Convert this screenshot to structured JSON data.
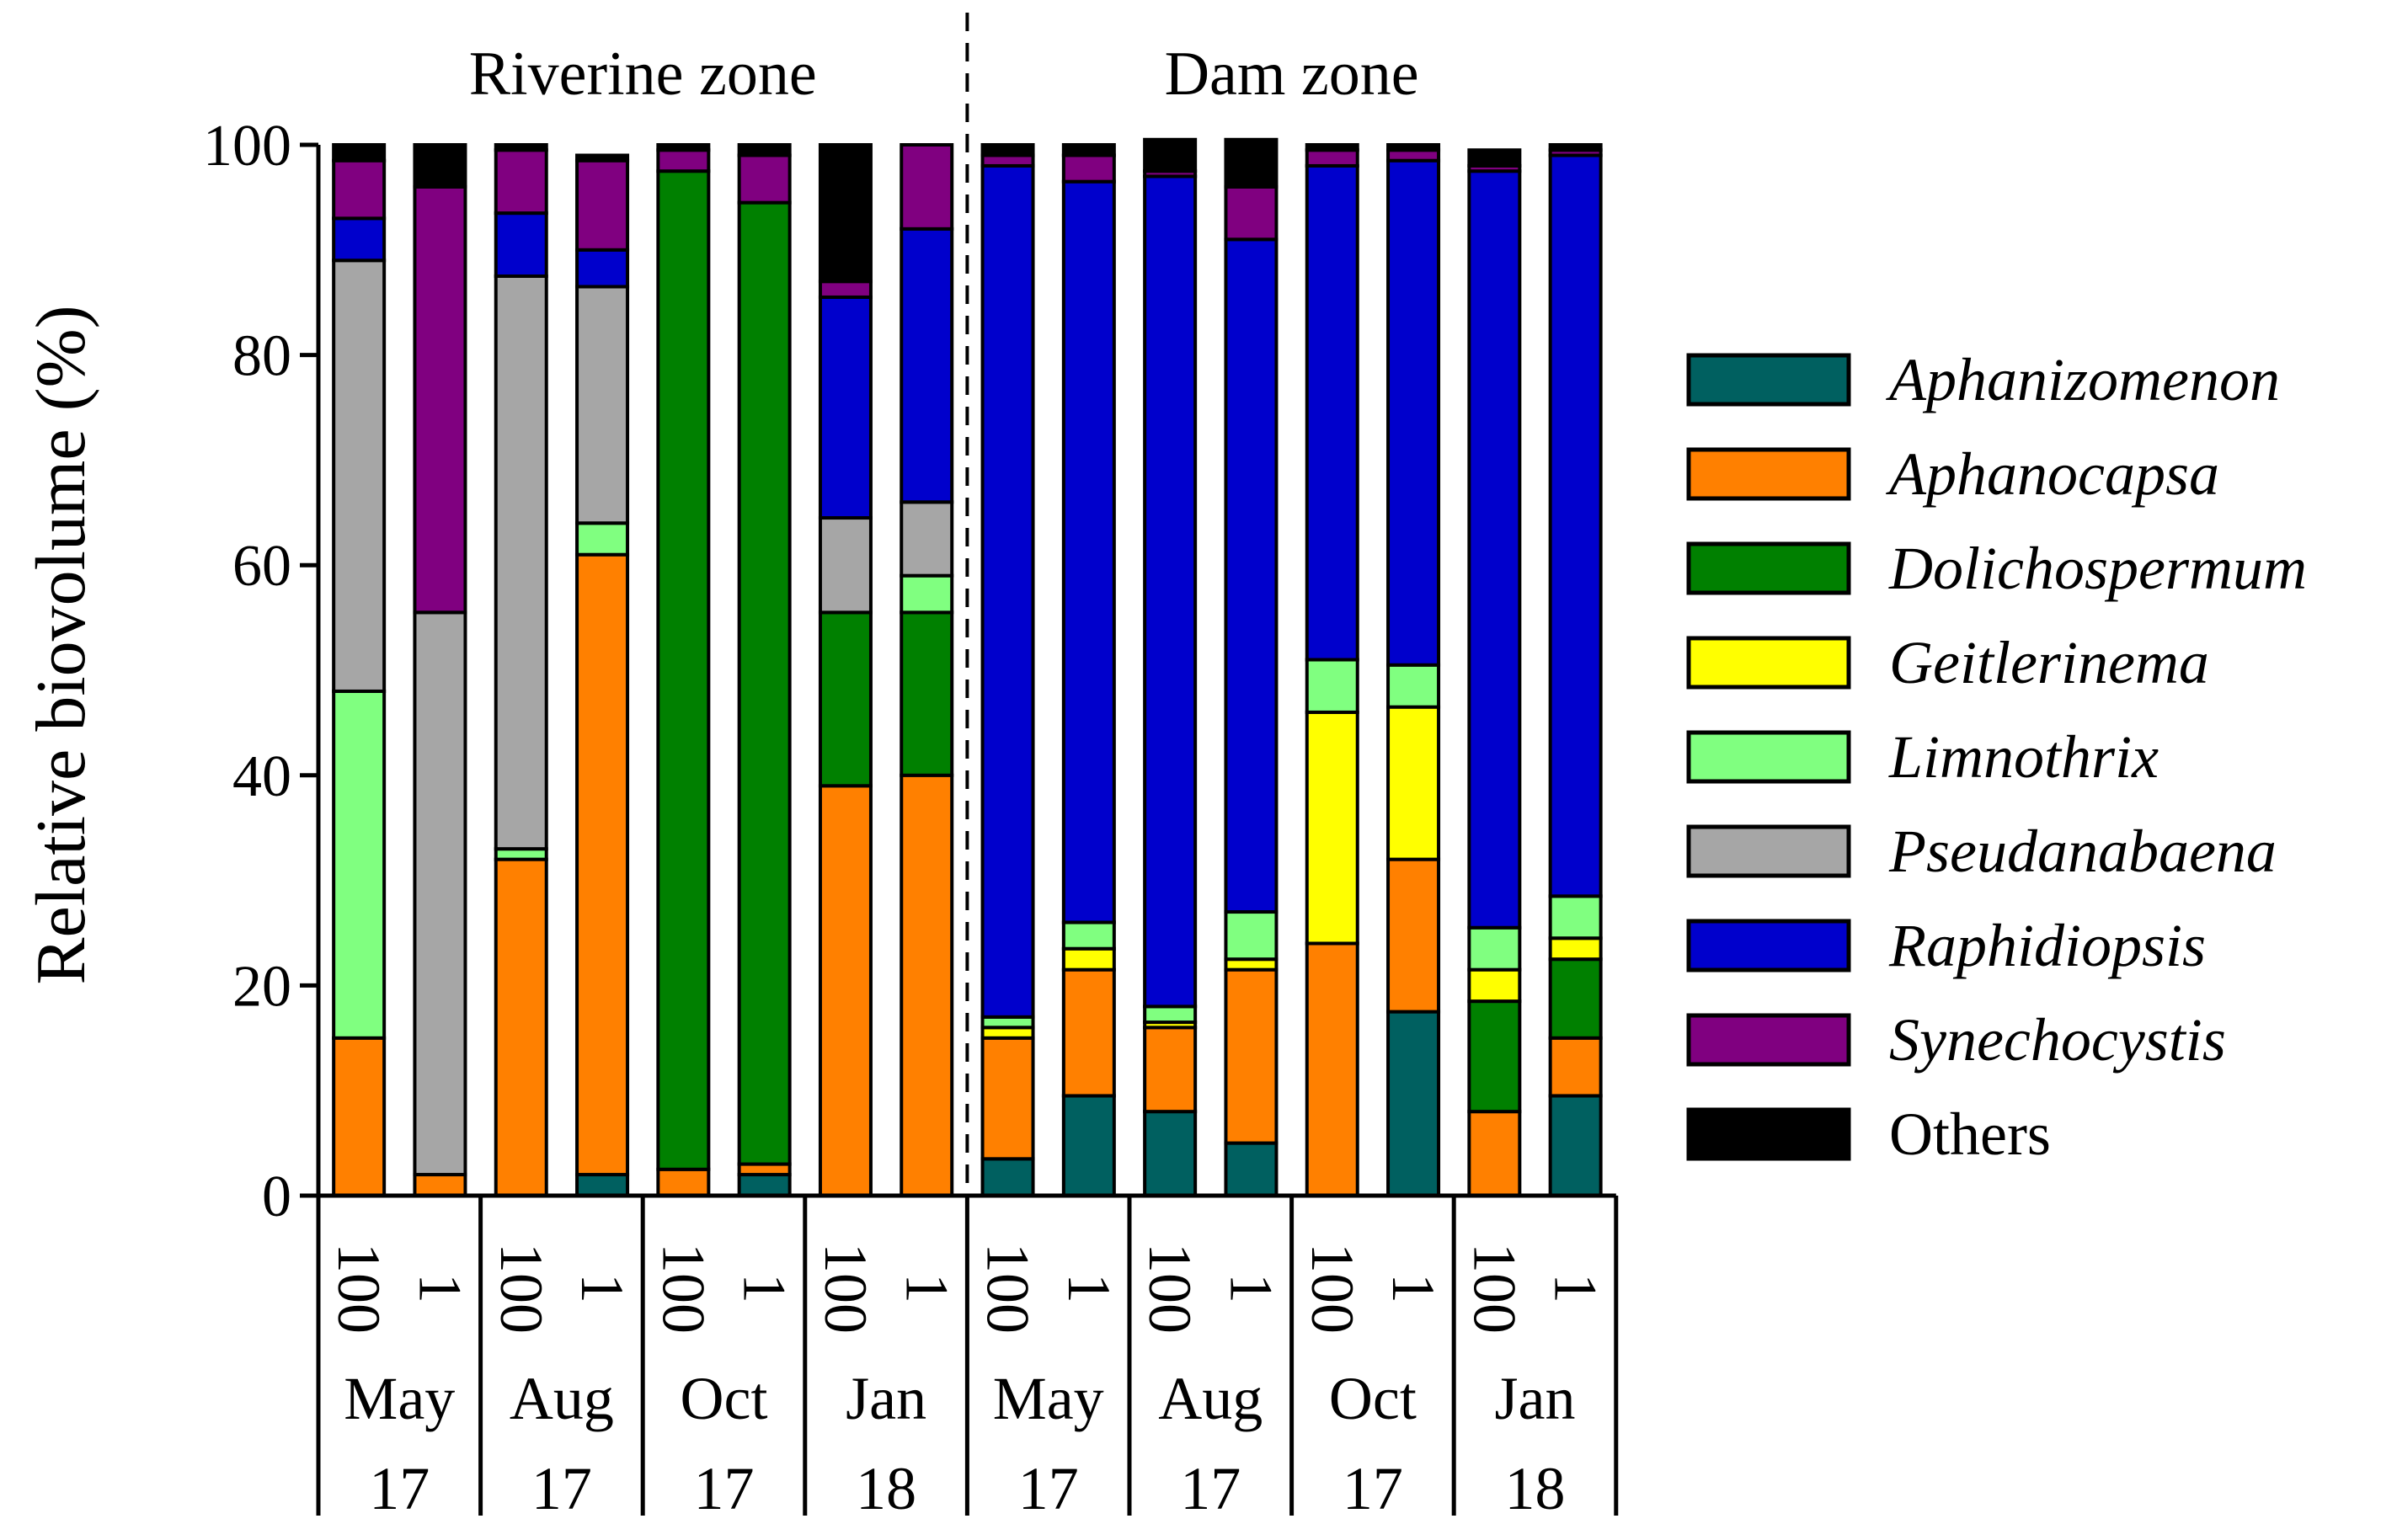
{
  "chart_data": {
    "type": "bar",
    "stacked": true,
    "ylabel": "Relative biovolume (%)",
    "ylim": [
      0,
      100
    ],
    "yticks": [
      0,
      20,
      40,
      60,
      80,
      100
    ],
    "zones": [
      {
        "label": "Riverine zone",
        "bars": [
          0,
          7
        ]
      },
      {
        "label": "Dam zone",
        "bars": [
          8,
          15
        ]
      }
    ],
    "groups": [
      {
        "month": "May",
        "year": "17",
        "depths": [
          "100",
          "1"
        ]
      },
      {
        "month": "Aug",
        "year": "17",
        "depths": [
          "100",
          "1"
        ]
      },
      {
        "month": "Oct",
        "year": "17",
        "depths": [
          "100",
          "1"
        ]
      },
      {
        "month": "Jan",
        "year": "18",
        "depths": [
          "100",
          "1"
        ]
      },
      {
        "month": "May",
        "year": "17",
        "depths": [
          "100",
          "1"
        ]
      },
      {
        "month": "Aug",
        "year": "17",
        "depths": [
          "100",
          "1"
        ]
      },
      {
        "month": "Oct",
        "year": "17",
        "depths": [
          "100",
          "1"
        ]
      },
      {
        "month": "Jan",
        "year": "18",
        "depths": [
          "100",
          "1"
        ]
      }
    ],
    "series": [
      {
        "name": "Aphanizomenon",
        "color": "#006060",
        "italic": true,
        "values": [
          0,
          0,
          0,
          2,
          0,
          2,
          0,
          0,
          3.5,
          9.5,
          8,
          5,
          0,
          17.5,
          0,
          9.5
        ]
      },
      {
        "name": "Aphanocapsa",
        "color": "#ff8000",
        "italic": true,
        "values": [
          15,
          2,
          32,
          59,
          2.5,
          1,
          39,
          40,
          11.5,
          12,
          8,
          16.5,
          24,
          14.5,
          8,
          5.5
        ]
      },
      {
        "name": "Dolichospermum",
        "color": "#008000",
        "italic": true,
        "values": [
          0,
          0,
          0,
          0,
          95,
          91.5,
          16.5,
          15.5,
          0,
          0,
          0,
          0,
          0,
          0,
          10.5,
          7.5
        ]
      },
      {
        "name": "Geitlerinema",
        "color": "#ffff00",
        "italic": true,
        "values": [
          0,
          0,
          0,
          0,
          0,
          0,
          0,
          0,
          1,
          2,
          0.5,
          1,
          22,
          14.5,
          3,
          2
        ]
      },
      {
        "name": "Limnothrix",
        "color": "#80ff80",
        "italic": true,
        "values": [
          33,
          0,
          1,
          3,
          0,
          0,
          0,
          3.5,
          1,
          2.5,
          1.5,
          4.5,
          5,
          4,
          4,
          4
        ]
      },
      {
        "name": "Pseudanabaena",
        "color": "#a6a6a6",
        "italic": true,
        "values": [
          41,
          53.5,
          54.5,
          22.5,
          0,
          0,
          9,
          7,
          0,
          0,
          0,
          0,
          0,
          0,
          0,
          0
        ]
      },
      {
        "name": "Raphidiopsis",
        "color": "#0000cc",
        "italic": true,
        "values": [
          4,
          0,
          6,
          3.5,
          0,
          0,
          21,
          26,
          81,
          70.5,
          79,
          64,
          47,
          48,
          72,
          70.5
        ]
      },
      {
        "name": "Synechocystis",
        "color": "#800080",
        "italic": true,
        "values": [
          5.5,
          40.5,
          6,
          8.5,
          2,
          4.5,
          1.5,
          8,
          1,
          2.5,
          0.5,
          5,
          1.5,
          1,
          0.5,
          0.5
        ]
      },
      {
        "name": "Others",
        "color": "#000000",
        "italic": false,
        "values": [
          1.5,
          4,
          0.5,
          0.5,
          0.5,
          1,
          13,
          0,
          1,
          1,
          3,
          4.5,
          0.5,
          0.5,
          1.5,
          0.5
        ]
      }
    ]
  }
}
